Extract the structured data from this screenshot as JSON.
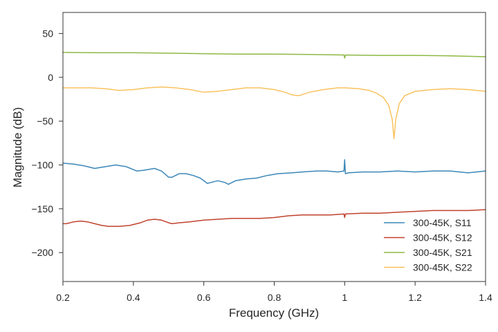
{
  "chart_data": {
    "type": "line",
    "title": "",
    "xlabel": "Frequency (GHz)",
    "ylabel": "Magnitude (dB)",
    "xlim": [
      0.2,
      1.4
    ],
    "ylim": [
      -233,
      74
    ],
    "xticks": [
      0.2,
      0.4,
      0.6,
      0.8,
      1.0,
      1.2,
      1.4
    ],
    "xtick_labels": [
      "0.2",
      "0.4",
      "0.6",
      "0.8",
      "1",
      "1.2",
      "1.4"
    ],
    "yticks": [
      50,
      0,
      -50,
      -100,
      -150,
      -200
    ],
    "ytick_labels": [
      "50",
      "0",
      "−50",
      "−100",
      "−150",
      "−200"
    ],
    "grid": false,
    "legend_position": "lower-right",
    "series": [
      {
        "name": "300-45K, S11",
        "color": "#3a87b8",
        "x": [
          0.2,
          0.23,
          0.26,
          0.29,
          0.32,
          0.35,
          0.38,
          0.41,
          0.43,
          0.46,
          0.48,
          0.5,
          0.51,
          0.53,
          0.55,
          0.57,
          0.59,
          0.61,
          0.62,
          0.64,
          0.66,
          0.67,
          0.69,
          0.72,
          0.75,
          0.78,
          0.81,
          0.85,
          0.88,
          0.92,
          0.95,
          0.98,
          0.998,
          1.0,
          1.002,
          1.01,
          1.05,
          1.1,
          1.15,
          1.2,
          1.25,
          1.3,
          1.35,
          1.4
        ],
        "y": [
          -98,
          -99,
          -101,
          -104,
          -102,
          -100,
          -102,
          -107,
          -106,
          -104,
          -107,
          -114,
          -114,
          -110,
          -110,
          -112,
          -115,
          -121,
          -120,
          -118,
          -120,
          -122,
          -118,
          -116,
          -115,
          -112,
          -110,
          -109,
          -108,
          -107,
          -107,
          -108,
          -107,
          -94,
          -110,
          -109,
          -108,
          -108,
          -107,
          -108,
          -107,
          -107,
          -109,
          -107
        ]
      },
      {
        "name": "300-45K, S12",
        "color": "#c0422d",
        "x": [
          0.2,
          0.21,
          0.23,
          0.25,
          0.27,
          0.29,
          0.31,
          0.33,
          0.36,
          0.39,
          0.42,
          0.44,
          0.46,
          0.48,
          0.5,
          0.51,
          0.53,
          0.56,
          0.6,
          0.64,
          0.68,
          0.72,
          0.76,
          0.8,
          0.84,
          0.88,
          0.92,
          0.96,
          0.998,
          1.0,
          1.002,
          1.05,
          1.1,
          1.15,
          1.2,
          1.25,
          1.3,
          1.35,
          1.4
        ],
        "y": [
          -167,
          -167,
          -165,
          -164,
          -165,
          -167,
          -169,
          -170,
          -170,
          -169,
          -166,
          -163,
          -162,
          -163,
          -166,
          -167,
          -166,
          -165,
          -163,
          -162,
          -161,
          -161,
          -161,
          -160,
          -158,
          -157,
          -157,
          -157,
          -156,
          -160,
          -156,
          -155,
          -155,
          -154,
          -153,
          -152,
          -152,
          -152,
          -151
        ]
      },
      {
        "name": "300-45K, S21",
        "color": "#8db845",
        "x": [
          0.2,
          0.3,
          0.4,
          0.5,
          0.6,
          0.7,
          0.8,
          0.9,
          0.998,
          1.0,
          1.002,
          1.1,
          1.2,
          1.3,
          1.4
        ],
        "y": [
          28.5,
          28,
          28,
          27.5,
          27,
          26.5,
          26.5,
          26,
          25.5,
          22,
          25.5,
          25,
          25,
          24.5,
          23.5
        ]
      },
      {
        "name": "300-45K, S22",
        "color": "#f9c25f",
        "x": [
          0.2,
          0.24,
          0.28,
          0.32,
          0.36,
          0.4,
          0.44,
          0.48,
          0.52,
          0.56,
          0.6,
          0.64,
          0.68,
          0.72,
          0.76,
          0.8,
          0.83,
          0.85,
          0.87,
          0.9,
          0.94,
          0.98,
          1.0,
          1.04,
          1.07,
          1.09,
          1.11,
          1.125,
          1.135,
          1.14,
          1.145,
          1.155,
          1.17,
          1.2,
          1.25,
          1.3,
          1.35,
          1.4
        ],
        "y": [
          -12,
          -12,
          -12,
          -13,
          -15,
          -14,
          -12,
          -11,
          -12,
          -14,
          -17,
          -16,
          -14,
          -12,
          -12,
          -14,
          -17,
          -20,
          -21,
          -17,
          -14,
          -12,
          -12,
          -13,
          -15,
          -18,
          -23,
          -32,
          -48,
          -70,
          -48,
          -30,
          -21,
          -16,
          -14,
          -13,
          -14,
          -16
        ]
      }
    ]
  }
}
